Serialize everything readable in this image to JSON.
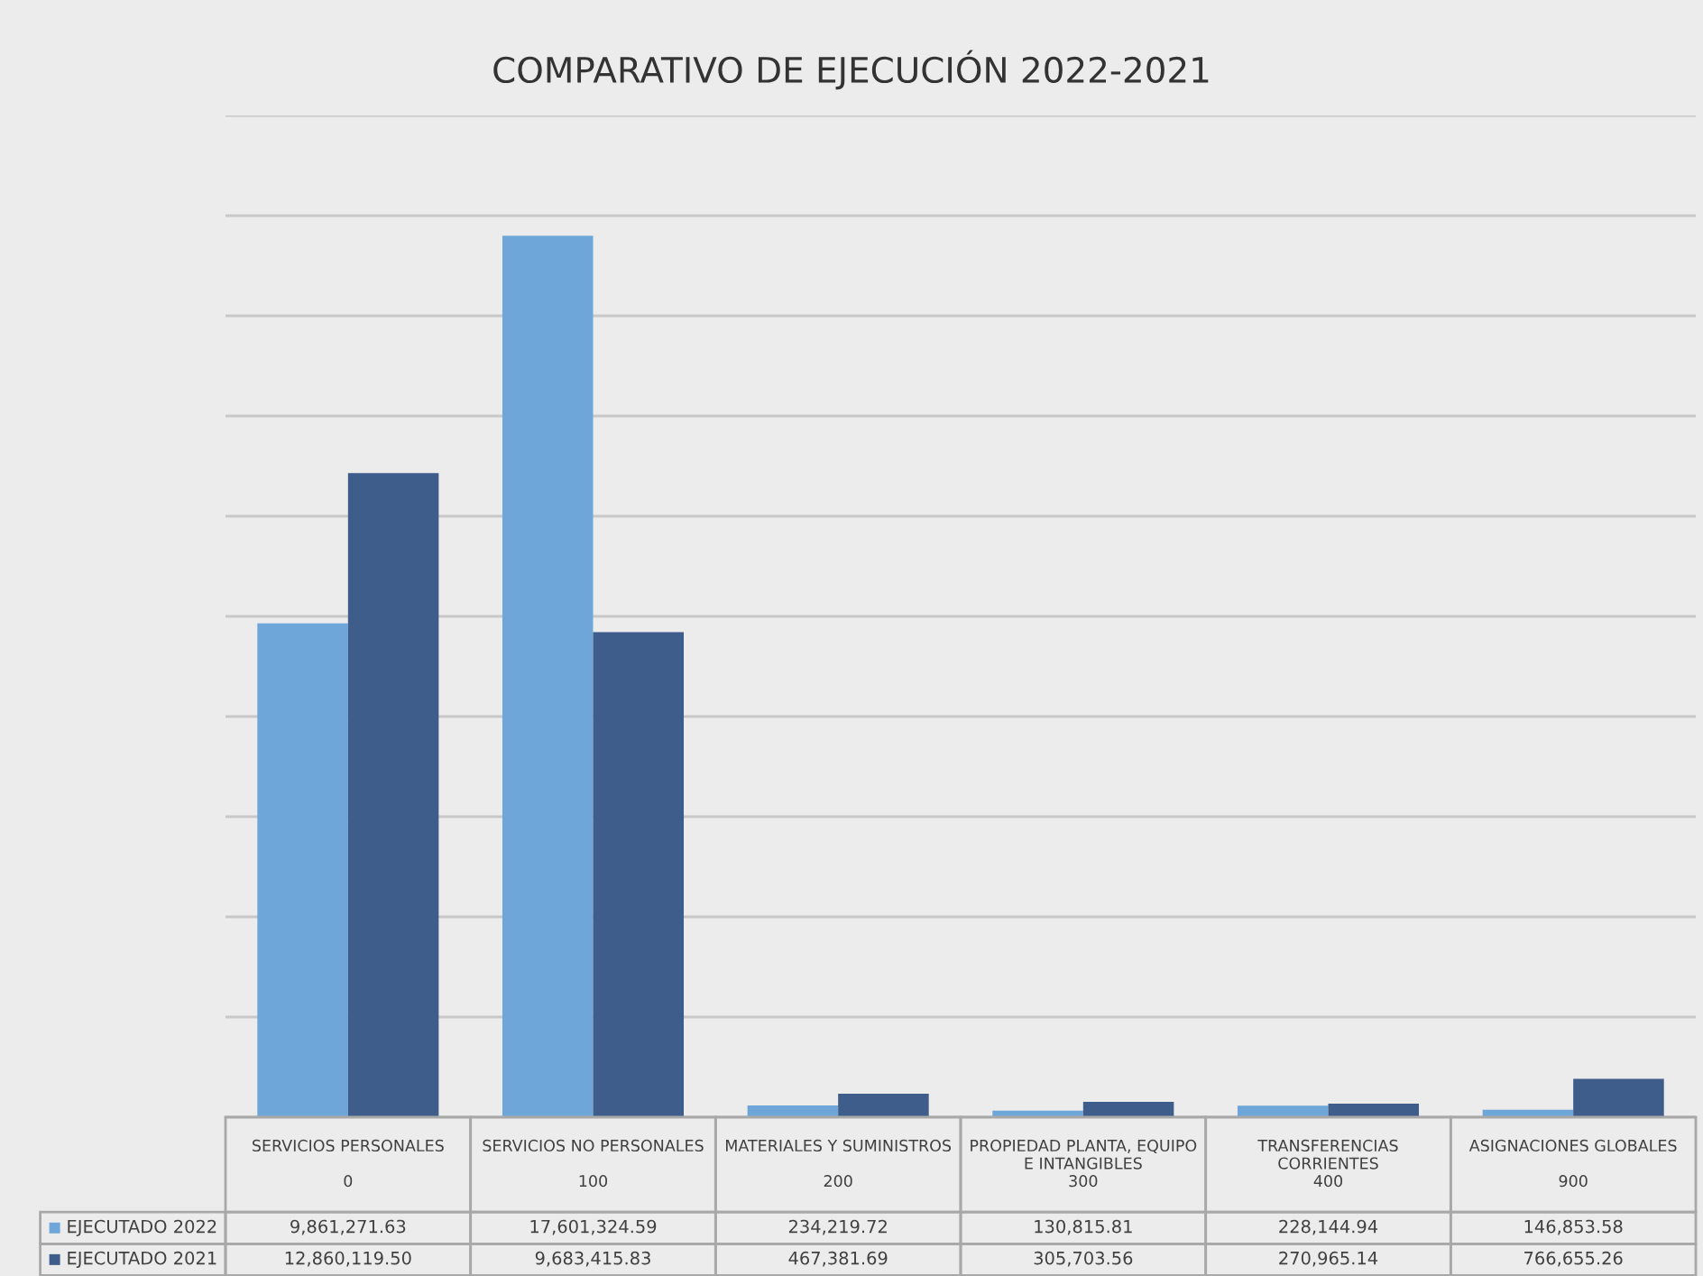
{
  "chart_data": {
    "type": "bar",
    "title": "COMPARATIVO DE EJECUCIÓN 2022-2021",
    "categories": [
      "SERVICIOS PERSONALES\n\n0",
      "SERVICIOS NO PERSONALES\n\n100",
      "MATERIALES Y SUMINISTROS\n\n200",
      "PROPIEDAD PLANTA, EQUIPO\nE INTANGIBLES\n300",
      "TRANSFERENCIAS\nCORRIENTES\n400",
      "ASIGNACIONES GLOBALES\n\n900"
    ],
    "series": [
      {
        "name": "EJECUTADO 2022",
        "color": "#6fa6da",
        "values": [
          9861271.63,
          17601324.59,
          234219.72,
          130815.81,
          228144.94,
          146853.58
        ],
        "value_labels": [
          "9,861,271.63",
          "17,601,324.59",
          "234,219.72",
          "130,815.81",
          "228,144.94",
          "146,853.58"
        ]
      },
      {
        "name": "EJECUTADO 2021",
        "color": "#3f5d8b",
        "values": [
          12860119.5,
          9683415.83,
          467381.69,
          305703.56,
          270965.14,
          766655.26
        ],
        "value_labels": [
          "12,860,119.50",
          "9,683,415.83",
          "467,381.69",
          "305,703.56",
          "270,965.14",
          "766,655.26"
        ]
      }
    ],
    "ylim": [
      0,
      20000000
    ],
    "yticks": [
      {
        "value": 0,
        "label": null
      },
      {
        "value": 2000000,
        "label": null
      },
      {
        "value": 4000000,
        "label": null
      },
      {
        "value": 6000000,
        "label": null
      },
      {
        "value": 8000000,
        "label": null
      },
      {
        "value": 10000000,
        "label": null
      },
      {
        "value": 12000000,
        "label": null
      },
      {
        "value": 14000000,
        "label": null
      },
      {
        "value": 16000000,
        "label": null
      },
      {
        "value": 18000000,
        "label": null
      },
      {
        "value": 20000000,
        "label": null
      }
    ],
    "tick_labels": "x",
    "grid": "y",
    "legend": "bottom left"
  }
}
